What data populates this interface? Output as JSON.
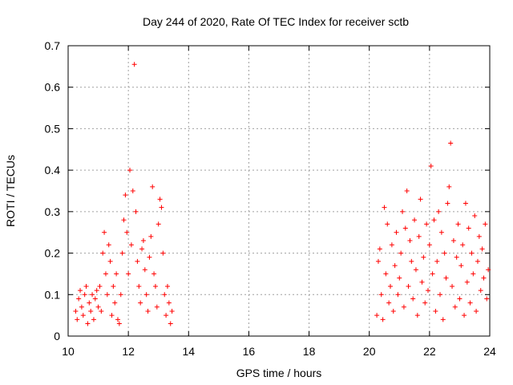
{
  "chart_data": {
    "type": "scatter",
    "title": "Day 244 of 2020, Rate Of TEC Index for receiver sctb",
    "xlabel": "GPS time / hours",
    "ylabel": "ROTI / TECUs",
    "xlim": [
      10,
      24
    ],
    "ylim": [
      0,
      0.7
    ],
    "x_ticks": [
      10,
      12,
      14,
      16,
      18,
      20,
      22,
      24
    ],
    "y_ticks": [
      0,
      0.1,
      0.2,
      0.3,
      0.4,
      0.5,
      0.6,
      0.7
    ],
    "x_tick_labels": [
      "10",
      "12",
      "14",
      "16",
      "18",
      "20",
      "22",
      "24"
    ],
    "y_tick_labels": [
      "0",
      "0.1",
      "0.2",
      "0.3",
      "0.4",
      "0.5",
      "0.6",
      "0.7"
    ],
    "grid": true,
    "marker": "plus",
    "color": "#ff0000",
    "series": [
      {
        "points": [
          [
            10.25,
            0.06
          ],
          [
            10.3,
            0.04
          ],
          [
            10.35,
            0.09
          ],
          [
            10.4,
            0.11
          ],
          [
            10.45,
            0.07
          ],
          [
            10.5,
            0.05
          ],
          [
            10.55,
            0.1
          ],
          [
            10.6,
            0.12
          ],
          [
            10.65,
            0.03
          ],
          [
            10.7,
            0.08
          ],
          [
            10.75,
            0.06
          ],
          [
            10.8,
            0.1
          ],
          [
            10.85,
            0.04
          ],
          [
            10.9,
            0.09
          ],
          [
            10.95,
            0.11
          ],
          [
            11.0,
            0.07
          ],
          [
            11.05,
            0.12
          ],
          [
            11.1,
            0.06
          ],
          [
            11.15,
            0.2
          ],
          [
            11.2,
            0.25
          ],
          [
            11.25,
            0.15
          ],
          [
            11.3,
            0.1
          ],
          [
            11.35,
            0.22
          ],
          [
            11.4,
            0.18
          ],
          [
            11.45,
            0.05
          ],
          [
            11.5,
            0.12
          ],
          [
            11.55,
            0.08
          ],
          [
            11.6,
            0.15
          ],
          [
            11.65,
            0.04
          ],
          [
            11.7,
            0.03
          ],
          [
            11.75,
            0.1
          ],
          [
            11.8,
            0.2
          ],
          [
            11.85,
            0.28
          ],
          [
            11.9,
            0.34
          ],
          [
            11.95,
            0.25
          ],
          [
            12.0,
            0.15
          ],
          [
            12.05,
            0.4
          ],
          [
            12.1,
            0.22
          ],
          [
            12.15,
            0.35
          ],
          [
            12.2,
            0.655
          ],
          [
            12.25,
            0.3
          ],
          [
            12.3,
            0.18
          ],
          [
            12.35,
            0.12
          ],
          [
            12.4,
            0.08
          ],
          [
            12.45,
            0.21
          ],
          [
            12.5,
            0.23
          ],
          [
            12.55,
            0.16
          ],
          [
            12.6,
            0.1
          ],
          [
            12.65,
            0.06
          ],
          [
            12.7,
            0.19
          ],
          [
            12.75,
            0.24
          ],
          [
            12.8,
            0.36
          ],
          [
            12.85,
            0.15
          ],
          [
            12.9,
            0.12
          ],
          [
            12.95,
            0.07
          ],
          [
            13.0,
            0.27
          ],
          [
            13.05,
            0.33
          ],
          [
            13.1,
            0.31
          ],
          [
            13.15,
            0.2
          ],
          [
            13.2,
            0.1
          ],
          [
            13.25,
            0.05
          ],
          [
            13.3,
            0.12
          ],
          [
            13.35,
            0.08
          ],
          [
            13.4,
            0.03
          ],
          [
            13.45,
            0.06
          ],
          [
            20.25,
            0.05
          ],
          [
            20.3,
            0.18
          ],
          [
            20.35,
            0.21
          ],
          [
            20.4,
            0.1
          ],
          [
            20.45,
            0.04
          ],
          [
            20.5,
            0.31
          ],
          [
            20.55,
            0.15
          ],
          [
            20.6,
            0.27
          ],
          [
            20.65,
            0.08
          ],
          [
            20.7,
            0.12
          ],
          [
            20.75,
            0.22
          ],
          [
            20.8,
            0.06
          ],
          [
            20.85,
            0.17
          ],
          [
            20.9,
            0.25
          ],
          [
            20.95,
            0.1
          ],
          [
            21.0,
            0.14
          ],
          [
            21.05,
            0.2
          ],
          [
            21.1,
            0.3
          ],
          [
            21.15,
            0.07
          ],
          [
            21.2,
            0.26
          ],
          [
            21.25,
            0.35
          ],
          [
            21.3,
            0.12
          ],
          [
            21.35,
            0.23
          ],
          [
            21.4,
            0.18
          ],
          [
            21.45,
            0.09
          ],
          [
            21.5,
            0.28
          ],
          [
            21.55,
            0.16
          ],
          [
            21.6,
            0.05
          ],
          [
            21.65,
            0.24
          ],
          [
            21.7,
            0.33
          ],
          [
            21.75,
            0.13
          ],
          [
            21.8,
            0.19
          ],
          [
            21.85,
            0.08
          ],
          [
            21.9,
            0.27
          ],
          [
            21.95,
            0.11
          ],
          [
            22.0,
            0.22
          ],
          [
            22.05,
            0.41
          ],
          [
            22.1,
            0.15
          ],
          [
            22.15,
            0.28
          ],
          [
            22.2,
            0.06
          ],
          [
            22.25,
            0.18
          ],
          [
            22.3,
            0.3
          ],
          [
            22.35,
            0.1
          ],
          [
            22.4,
            0.25
          ],
          [
            22.45,
            0.04
          ],
          [
            22.5,
            0.2
          ],
          [
            22.55,
            0.14
          ],
          [
            22.6,
            0.32
          ],
          [
            22.65,
            0.36
          ],
          [
            22.7,
            0.465
          ],
          [
            22.75,
            0.12
          ],
          [
            22.8,
            0.23
          ],
          [
            22.85,
            0.07
          ],
          [
            22.9,
            0.19
          ],
          [
            22.95,
            0.27
          ],
          [
            23.0,
            0.09
          ],
          [
            23.05,
            0.17
          ],
          [
            23.1,
            0.22
          ],
          [
            23.15,
            0.05
          ],
          [
            23.2,
            0.32
          ],
          [
            23.25,
            0.13
          ],
          [
            23.3,
            0.26
          ],
          [
            23.35,
            0.08
          ],
          [
            23.4,
            0.2
          ],
          [
            23.45,
            0.15
          ],
          [
            23.5,
            0.29
          ],
          [
            23.55,
            0.06
          ],
          [
            23.6,
            0.18
          ],
          [
            23.65,
            0.24
          ],
          [
            23.7,
            0.11
          ],
          [
            23.75,
            0.21
          ],
          [
            23.8,
            0.14
          ],
          [
            23.85,
            0.27
          ],
          [
            23.9,
            0.09
          ],
          [
            23.95,
            0.16
          ]
        ]
      }
    ]
  }
}
